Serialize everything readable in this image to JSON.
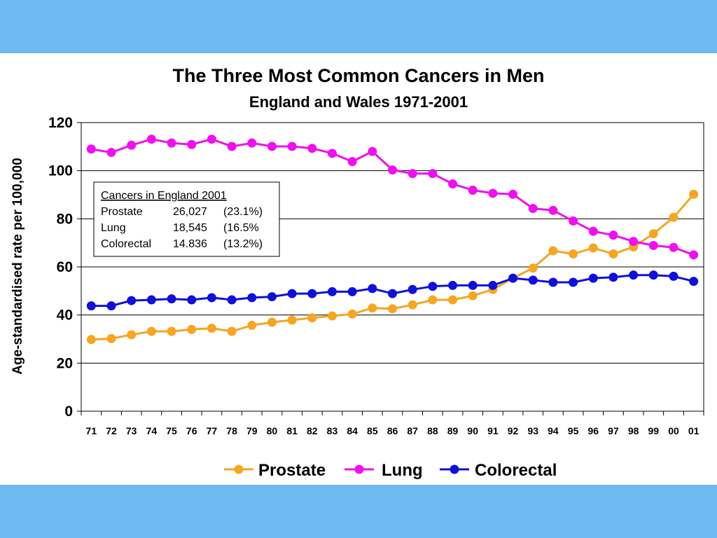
{
  "chart_data": {
    "type": "line",
    "title": "The Three Most Common Cancers in Men",
    "subtitle": "England and Wales 1971-2001",
    "xlabel": "",
    "ylabel": "Age-standardised rate per 100,000",
    "ylim": [
      0,
      120
    ],
    "yticks": [
      "0",
      "20",
      "40",
      "60",
      "80",
      "100",
      "120"
    ],
    "grid": "horizontal",
    "legend_position": "bottom",
    "categories": [
      "71",
      "72",
      "73",
      "74",
      "75",
      "76",
      "77",
      "78",
      "79",
      "80",
      "81",
      "82",
      "83",
      "84",
      "85",
      "86",
      "87",
      "88",
      "89",
      "90",
      "91",
      "92",
      "93",
      "94",
      "95",
      "96",
      "97",
      "98",
      "99",
      "00",
      "01"
    ],
    "series": [
      {
        "name": "Prostate",
        "color": "#f5a623",
        "values": [
          29.8,
          30.2,
          31.8,
          33.2,
          33.2,
          34,
          34.5,
          33.2,
          35.7,
          37,
          37.9,
          38.8,
          39.6,
          40.4,
          42.9,
          42.6,
          44.2,
          46.3,
          46.3,
          48,
          50.6,
          55.3,
          59.5,
          66.7,
          65.4,
          67.9,
          65.4,
          68.3,
          73.8,
          80.6,
          90.2
        ]
      },
      {
        "name": "Lung",
        "color": "#ee11ee",
        "values": [
          109,
          107.6,
          110.6,
          113.1,
          111.5,
          110.9,
          113.1,
          110.1,
          111.5,
          110.1,
          110.1,
          109.3,
          107.2,
          103.8,
          108,
          100.3,
          98.8,
          98.8,
          94.5,
          91.9,
          90.6,
          90.2,
          84.3,
          83.5,
          79.1,
          74.8,
          73.2,
          70.6,
          68.9,
          68.1,
          65
        ]
      },
      {
        "name": "Colorectal",
        "color": "#1010d8",
        "values": [
          43.8,
          43.8,
          46,
          46.3,
          46.7,
          46.3,
          47.2,
          46.3,
          47.2,
          47.6,
          48.9,
          48.9,
          49.7,
          49.7,
          51,
          48.9,
          50.6,
          51.9,
          52.3,
          52.3,
          52.3,
          55.3,
          54.5,
          53.6,
          53.6,
          55.3,
          55.7,
          56.6,
          56.6,
          56.1,
          54
        ]
      }
    ]
  },
  "info_box": {
    "title": "Cancers in England 2001",
    "rows": [
      {
        "name": "Prostate",
        "count": "26,027",
        "pct": "(23.1%)"
      },
      {
        "name": "Lung",
        "count": "18,545",
        "pct": "(16.5%"
      },
      {
        "name": "Colorectal",
        "count": "14.836",
        "pct": "(13.2%)"
      }
    ]
  }
}
